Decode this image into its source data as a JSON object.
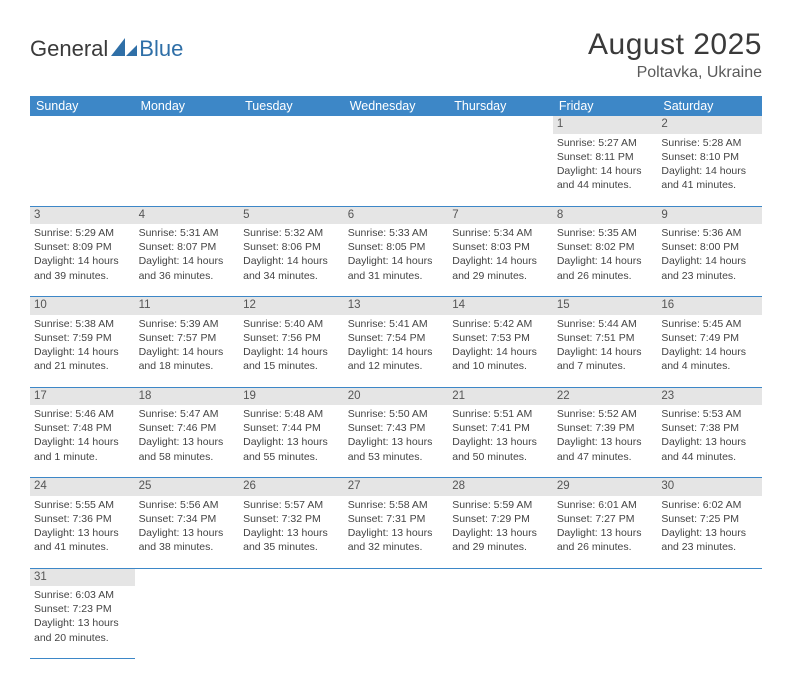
{
  "logo": {
    "text_left": "General",
    "text_blue": "Blue"
  },
  "title": "August 2025",
  "location": "Poltavka, Ukraine",
  "day_headers": [
    "Sunday",
    "Monday",
    "Tuesday",
    "Wednesday",
    "Thursday",
    "Friday",
    "Saturday"
  ],
  "colors": {
    "header_bg": "#3d87c7",
    "header_text": "#ffffff",
    "daynum_bg": "#e5e5e5",
    "cell_border": "#3d87c7",
    "logo_blue": "#2f6fa7"
  },
  "weeks": [
    [
      {
        "empty": true
      },
      {
        "empty": true
      },
      {
        "empty": true
      },
      {
        "empty": true
      },
      {
        "empty": true
      },
      {
        "day": "1",
        "sunrise": "Sunrise: 5:27 AM",
        "sunset": "Sunset: 8:11 PM",
        "daylight1": "Daylight: 14 hours",
        "daylight2": "and 44 minutes."
      },
      {
        "day": "2",
        "sunrise": "Sunrise: 5:28 AM",
        "sunset": "Sunset: 8:10 PM",
        "daylight1": "Daylight: 14 hours",
        "daylight2": "and 41 minutes."
      }
    ],
    [
      {
        "day": "3",
        "sunrise": "Sunrise: 5:29 AM",
        "sunset": "Sunset: 8:09 PM",
        "daylight1": "Daylight: 14 hours",
        "daylight2": "and 39 minutes."
      },
      {
        "day": "4",
        "sunrise": "Sunrise: 5:31 AM",
        "sunset": "Sunset: 8:07 PM",
        "daylight1": "Daylight: 14 hours",
        "daylight2": "and 36 minutes."
      },
      {
        "day": "5",
        "sunrise": "Sunrise: 5:32 AM",
        "sunset": "Sunset: 8:06 PM",
        "daylight1": "Daylight: 14 hours",
        "daylight2": "and 34 minutes."
      },
      {
        "day": "6",
        "sunrise": "Sunrise: 5:33 AM",
        "sunset": "Sunset: 8:05 PM",
        "daylight1": "Daylight: 14 hours",
        "daylight2": "and 31 minutes."
      },
      {
        "day": "7",
        "sunrise": "Sunrise: 5:34 AM",
        "sunset": "Sunset: 8:03 PM",
        "daylight1": "Daylight: 14 hours",
        "daylight2": "and 29 minutes."
      },
      {
        "day": "8",
        "sunrise": "Sunrise: 5:35 AM",
        "sunset": "Sunset: 8:02 PM",
        "daylight1": "Daylight: 14 hours",
        "daylight2": "and 26 minutes."
      },
      {
        "day": "9",
        "sunrise": "Sunrise: 5:36 AM",
        "sunset": "Sunset: 8:00 PM",
        "daylight1": "Daylight: 14 hours",
        "daylight2": "and 23 minutes."
      }
    ],
    [
      {
        "day": "10",
        "sunrise": "Sunrise: 5:38 AM",
        "sunset": "Sunset: 7:59 PM",
        "daylight1": "Daylight: 14 hours",
        "daylight2": "and 21 minutes."
      },
      {
        "day": "11",
        "sunrise": "Sunrise: 5:39 AM",
        "sunset": "Sunset: 7:57 PM",
        "daylight1": "Daylight: 14 hours",
        "daylight2": "and 18 minutes."
      },
      {
        "day": "12",
        "sunrise": "Sunrise: 5:40 AM",
        "sunset": "Sunset: 7:56 PM",
        "daylight1": "Daylight: 14 hours",
        "daylight2": "and 15 minutes."
      },
      {
        "day": "13",
        "sunrise": "Sunrise: 5:41 AM",
        "sunset": "Sunset: 7:54 PM",
        "daylight1": "Daylight: 14 hours",
        "daylight2": "and 12 minutes."
      },
      {
        "day": "14",
        "sunrise": "Sunrise: 5:42 AM",
        "sunset": "Sunset: 7:53 PM",
        "daylight1": "Daylight: 14 hours",
        "daylight2": "and 10 minutes."
      },
      {
        "day": "15",
        "sunrise": "Sunrise: 5:44 AM",
        "sunset": "Sunset: 7:51 PM",
        "daylight1": "Daylight: 14 hours",
        "daylight2": "and 7 minutes."
      },
      {
        "day": "16",
        "sunrise": "Sunrise: 5:45 AM",
        "sunset": "Sunset: 7:49 PM",
        "daylight1": "Daylight: 14 hours",
        "daylight2": "and 4 minutes."
      }
    ],
    [
      {
        "day": "17",
        "sunrise": "Sunrise: 5:46 AM",
        "sunset": "Sunset: 7:48 PM",
        "daylight1": "Daylight: 14 hours",
        "daylight2": "and 1 minute."
      },
      {
        "day": "18",
        "sunrise": "Sunrise: 5:47 AM",
        "sunset": "Sunset: 7:46 PM",
        "daylight1": "Daylight: 13 hours",
        "daylight2": "and 58 minutes."
      },
      {
        "day": "19",
        "sunrise": "Sunrise: 5:48 AM",
        "sunset": "Sunset: 7:44 PM",
        "daylight1": "Daylight: 13 hours",
        "daylight2": "and 55 minutes."
      },
      {
        "day": "20",
        "sunrise": "Sunrise: 5:50 AM",
        "sunset": "Sunset: 7:43 PM",
        "daylight1": "Daylight: 13 hours",
        "daylight2": "and 53 minutes."
      },
      {
        "day": "21",
        "sunrise": "Sunrise: 5:51 AM",
        "sunset": "Sunset: 7:41 PM",
        "daylight1": "Daylight: 13 hours",
        "daylight2": "and 50 minutes."
      },
      {
        "day": "22",
        "sunrise": "Sunrise: 5:52 AM",
        "sunset": "Sunset: 7:39 PM",
        "daylight1": "Daylight: 13 hours",
        "daylight2": "and 47 minutes."
      },
      {
        "day": "23",
        "sunrise": "Sunrise: 5:53 AM",
        "sunset": "Sunset: 7:38 PM",
        "daylight1": "Daylight: 13 hours",
        "daylight2": "and 44 minutes."
      }
    ],
    [
      {
        "day": "24",
        "sunrise": "Sunrise: 5:55 AM",
        "sunset": "Sunset: 7:36 PM",
        "daylight1": "Daylight: 13 hours",
        "daylight2": "and 41 minutes."
      },
      {
        "day": "25",
        "sunrise": "Sunrise: 5:56 AM",
        "sunset": "Sunset: 7:34 PM",
        "daylight1": "Daylight: 13 hours",
        "daylight2": "and 38 minutes."
      },
      {
        "day": "26",
        "sunrise": "Sunrise: 5:57 AM",
        "sunset": "Sunset: 7:32 PM",
        "daylight1": "Daylight: 13 hours",
        "daylight2": "and 35 minutes."
      },
      {
        "day": "27",
        "sunrise": "Sunrise: 5:58 AM",
        "sunset": "Sunset: 7:31 PM",
        "daylight1": "Daylight: 13 hours",
        "daylight2": "and 32 minutes."
      },
      {
        "day": "28",
        "sunrise": "Sunrise: 5:59 AM",
        "sunset": "Sunset: 7:29 PM",
        "daylight1": "Daylight: 13 hours",
        "daylight2": "and 29 minutes."
      },
      {
        "day": "29",
        "sunrise": "Sunrise: 6:01 AM",
        "sunset": "Sunset: 7:27 PM",
        "daylight1": "Daylight: 13 hours",
        "daylight2": "and 26 minutes."
      },
      {
        "day": "30",
        "sunrise": "Sunrise: 6:02 AM",
        "sunset": "Sunset: 7:25 PM",
        "daylight1": "Daylight: 13 hours",
        "daylight2": "and 23 minutes."
      }
    ],
    [
      {
        "day": "31",
        "sunrise": "Sunrise: 6:03 AM",
        "sunset": "Sunset: 7:23 PM",
        "daylight1": "Daylight: 13 hours",
        "daylight2": "and 20 minutes."
      },
      {
        "empty": true,
        "noborder": true
      },
      {
        "empty": true,
        "noborder": true
      },
      {
        "empty": true,
        "noborder": true
      },
      {
        "empty": true,
        "noborder": true
      },
      {
        "empty": true,
        "noborder": true
      },
      {
        "empty": true,
        "noborder": true
      }
    ]
  ]
}
